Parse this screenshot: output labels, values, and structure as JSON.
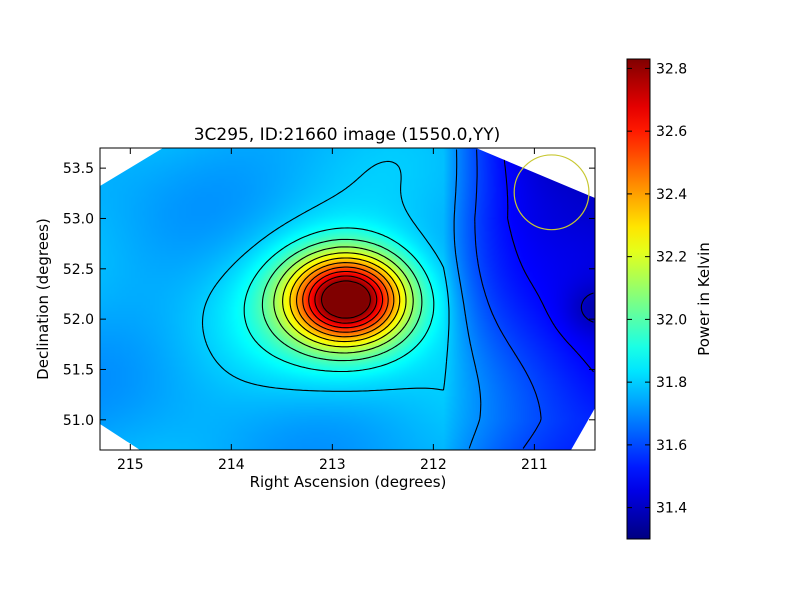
{
  "chart_data": {
    "type": "heatmap",
    "title": "3C295, ID:21660 image (1550.0,YY)",
    "xlabel": "Right Ascension (degrees)",
    "ylabel": "Declination (degrees)",
    "xlim": [
      215.3,
      210.4
    ],
    "ylim": [
      50.7,
      53.7
    ],
    "x_ticks": [
      215,
      214,
      213,
      212,
      211
    ],
    "x_tick_labels": [
      "215",
      "214",
      "213",
      "212",
      "211"
    ],
    "y_ticks": [
      51.0,
      51.5,
      52.0,
      52.5,
      53.0,
      53.5
    ],
    "y_tick_labels": [
      "51.0",
      "51.5",
      "52.0",
      "52.5",
      "53.0",
      "53.5"
    ],
    "colormap": "jet",
    "colorbar": {
      "label": "Power in Kelvin",
      "range": [
        31.3,
        32.83
      ],
      "ticks": [
        31.4,
        31.6,
        31.8,
        32.0,
        32.2,
        32.4,
        32.6,
        32.8
      ],
      "tick_labels": [
        "31.4",
        "31.6",
        "31.8",
        "32.0",
        "32.2",
        "32.4",
        "32.6",
        "32.8"
      ]
    },
    "peak": {
      "ra": 212.85,
      "dec": 52.2,
      "value": 32.82
    },
    "background_level": 31.75,
    "contours": {
      "color": "#000000"
    },
    "beam_circle": {
      "ra": 210.83,
      "dec": 53.26,
      "radius_deg": 0.37,
      "color": "#c8c832"
    }
  }
}
